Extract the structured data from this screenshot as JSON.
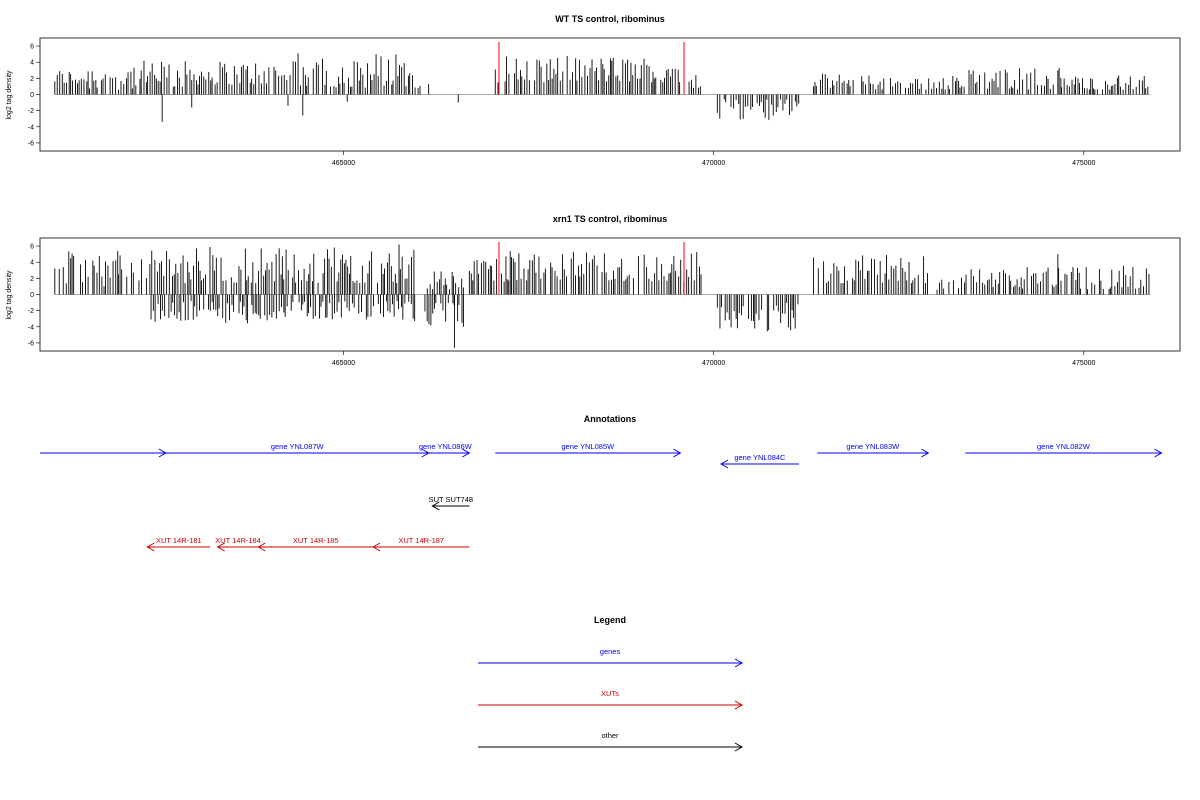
{
  "chart_data": [
    {
      "type": "bar",
      "title": "WT TS control, ribominus",
      "ylabel": "log2 tag density",
      "xlim": [
        460900,
        476300
      ],
      "ylim": [
        -7,
        7
      ],
      "yticks": [
        "6",
        "4",
        "2",
        "0",
        "-2",
        "-4",
        "-6"
      ],
      "xticks": [
        "465000",
        "470000",
        "475000"
      ],
      "markers": [
        467100,
        469600
      ],
      "marker_color": "#ff0000",
      "bar_color": "#000000",
      "segments": [
        {
          "start": 461100,
          "end": 461550,
          "min": 1.2,
          "max": 3.2,
          "sign": 1
        },
        {
          "start": 461550,
          "end": 462200,
          "min": 0.6,
          "max": 4.2,
          "sign": 1
        },
        {
          "start": 462250,
          "end": 462950,
          "min": 0.8,
          "max": 4.2,
          "sign": 1
        },
        {
          "start": 462950,
          "end": 464300,
          "min": 1.2,
          "max": 4.2,
          "sign": 1
        },
        {
          "start": 464300,
          "end": 466050,
          "min": 0.8,
          "max": 5.2,
          "sign": 1
        },
        {
          "start": 467050,
          "end": 469700,
          "min": 1.5,
          "max": 4.8,
          "sign": 1
        },
        {
          "start": 469700,
          "end": 469850,
          "min": 0.8,
          "max": 2.8,
          "sign": 1
        },
        {
          "start": 470050,
          "end": 471150,
          "min": 0.6,
          "max": 3.4,
          "sign": -1
        },
        {
          "start": 471350,
          "end": 471900,
          "min": 0.8,
          "max": 2.6,
          "sign": 1
        },
        {
          "start": 472000,
          "end": 473400,
          "min": 0.6,
          "max": 2.4,
          "sign": 1
        },
        {
          "start": 473450,
          "end": 474700,
          "min": 0.6,
          "max": 3.4,
          "sign": 1
        },
        {
          "start": 474700,
          "end": 475900,
          "min": 0.6,
          "max": 2.4,
          "sign": 1
        }
      ],
      "spikes": [
        {
          "x": 462550,
          "y": -3.4
        },
        {
          "x": 462950,
          "y": -1.6
        },
        {
          "x": 464250,
          "y": -1.4
        },
        {
          "x": 464450,
          "y": -2.6
        },
        {
          "x": 465050,
          "y": -0.9
        },
        {
          "x": 466550,
          "y": -1.0
        },
        {
          "x": 466150,
          "y": 1.3
        }
      ]
    },
    {
      "type": "bar",
      "title": "xrn1 TS control, ribominus",
      "ylabel": "log2 tag density",
      "xlim": [
        460900,
        476300
      ],
      "ylim": [
        -7,
        7
      ],
      "yticks": [
        "6",
        "4",
        "2",
        "0",
        "-2",
        "-4",
        "-6"
      ],
      "xticks": [
        "465000",
        "470000",
        "475000"
      ],
      "markers": [
        467100,
        469600
      ],
      "marker_color": "#ff0000",
      "bar_color": "#000000",
      "segments": [
        {
          "start": 461100,
          "end": 462350,
          "min": 1.0,
          "max": 5.4,
          "sign": 1
        },
        {
          "start": 462350,
          "end": 466000,
          "min": 1.4,
          "max": 6.0,
          "sign": 1
        },
        {
          "start": 462400,
          "end": 466000,
          "min": 0.8,
          "max": 3.6,
          "sign": -1
        },
        {
          "start": 466100,
          "end": 466650,
          "min": 0.6,
          "max": 3.0,
          "sign": 1
        },
        {
          "start": 466100,
          "end": 466650,
          "min": 1.0,
          "max": 4.2,
          "sign": -1
        },
        {
          "start": 466700,
          "end": 469850,
          "min": 1.6,
          "max": 5.4,
          "sign": 1
        },
        {
          "start": 470050,
          "end": 471150,
          "min": 1.0,
          "max": 4.6,
          "sign": -1
        },
        {
          "start": 471350,
          "end": 472900,
          "min": 1.4,
          "max": 5.0,
          "sign": 1
        },
        {
          "start": 473000,
          "end": 475900,
          "min": 0.6,
          "max": 3.6,
          "sign": 1
        }
      ],
      "spikes": [
        {
          "x": 466500,
          "y": -6.6
        },
        {
          "x": 465750,
          "y": 6.2
        },
        {
          "x": 474650,
          "y": 5.0
        },
        {
          "x": 461950,
          "y": 5.4
        }
      ]
    }
  ],
  "annotations": {
    "title": "Annotations",
    "features": [
      {
        "label": "",
        "color": "#0000ff",
        "start": 460900,
        "end": 462600,
        "strand": "+",
        "row": 0
      },
      {
        "label": "gene YNL087W",
        "color": "#0000ff",
        "start": 462600,
        "end": 466150,
        "strand": "+",
        "row": 0
      },
      {
        "label": "gene YNL086W",
        "color": "#0000ff",
        "start": 466050,
        "end": 466700,
        "strand": "+",
        "row": 0
      },
      {
        "label": "gene YNL085W",
        "color": "#0000ff",
        "start": 467050,
        "end": 469550,
        "strand": "+",
        "row": 0
      },
      {
        "label": "gene YNL084C",
        "color": "#0000ff",
        "start": 470100,
        "end": 471150,
        "strand": "-",
        "row": 1
      },
      {
        "label": "gene YNL083W",
        "color": "#0000ff",
        "start": 471400,
        "end": 472900,
        "strand": "+",
        "row": 0
      },
      {
        "label": "gene YNL082W",
        "color": "#0000ff",
        "start": 473400,
        "end": 476050,
        "strand": "+",
        "row": 0
      },
      {
        "label": "SUT SUT748",
        "color": "#000000",
        "start": 466200,
        "end": 466700,
        "strand": "-",
        "row": 2
      },
      {
        "label": "XUT 14R-181",
        "color": "#cc0000",
        "start": 462350,
        "end": 463200,
        "strand": "-",
        "row": 3
      },
      {
        "label": "XUT 14R-184",
        "color": "#cc0000",
        "start": 463300,
        "end": 463850,
        "strand": "-",
        "row": 3
      },
      {
        "label": "XUT 14R-185",
        "color": "#cc0000",
        "start": 463850,
        "end": 465400,
        "strand": "-",
        "row": 3
      },
      {
        "label": "XUT 14R-187",
        "color": "#cc0000",
        "start": 465400,
        "end": 466700,
        "strand": "-",
        "row": 3
      }
    ]
  },
  "legend": {
    "title": "Legend",
    "items": [
      {
        "label": "genes",
        "color": "#0000ff"
      },
      {
        "label": "XUTs",
        "color": "#cc0000"
      },
      {
        "label": "other",
        "color": "#000000"
      }
    ]
  }
}
